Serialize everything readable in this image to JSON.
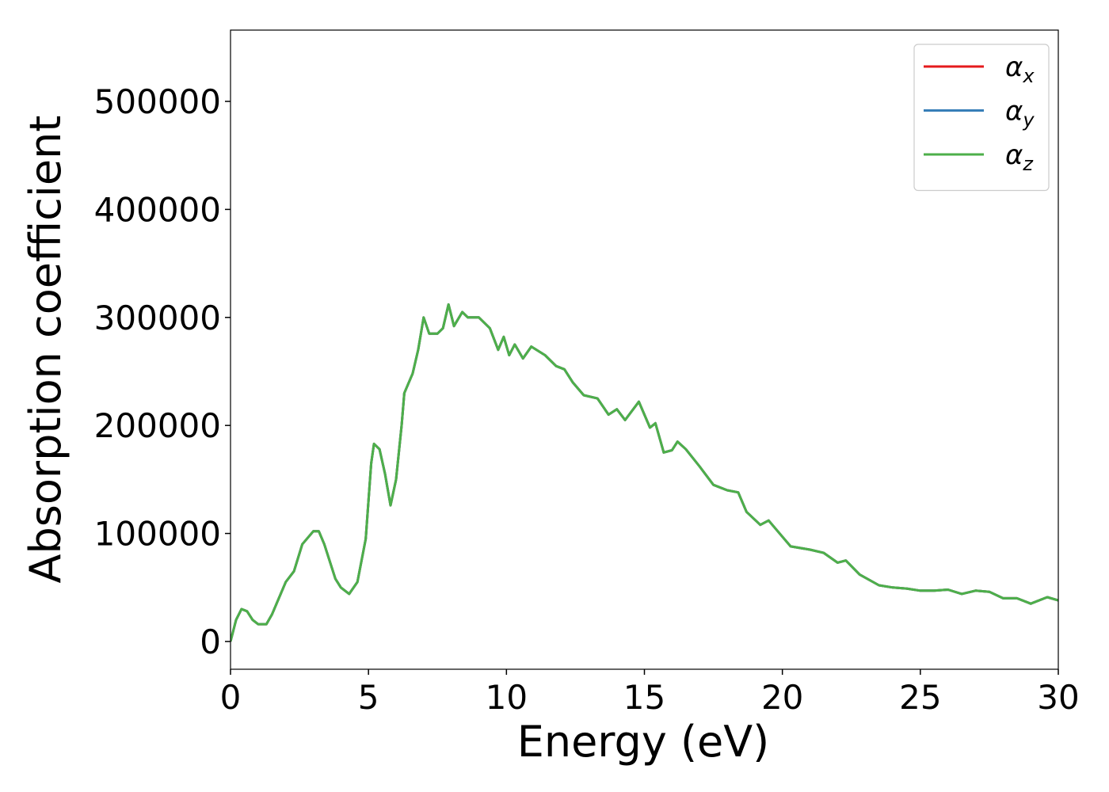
{
  "chart_data": {
    "type": "line",
    "xlabel": "Energy (eV)",
    "ylabel": "Absorption coefficient",
    "x": [
      0,
      0.2,
      0.4,
      0.6,
      0.8,
      1.0,
      1.3,
      1.5,
      2.0,
      2.3,
      2.6,
      3.0,
      3.2,
      3.4,
      3.8,
      4.0,
      4.3,
      4.6,
      4.9,
      5.1,
      5.2,
      5.4,
      5.6,
      5.8,
      6.0,
      6.2,
      6.3,
      6.6,
      6.8,
      7.0,
      7.2,
      7.5,
      7.7,
      7.9,
      8.1,
      8.4,
      8.6,
      9.0,
      9.4,
      9.7,
      9.9,
      10.1,
      10.3,
      10.6,
      10.9,
      11.4,
      11.8,
      12.1,
      12.4,
      12.8,
      13.3,
      13.7,
      14.0,
      14.3,
      14.8,
      15.2,
      15.4,
      15.7,
      16.0,
      16.2,
      16.5,
      17.0,
      17.5,
      18.0,
      18.4,
      18.7,
      19.2,
      19.5,
      20.0,
      20.3,
      21.0,
      21.5,
      22.0,
      22.3,
      22.8,
      23.5,
      24.0,
      24.5,
      25.0,
      25.5,
      26.0,
      26.5,
      27.0,
      27.5,
      28.0,
      28.5,
      29.0,
      29.6,
      30.0
    ],
    "series": [
      {
        "name": "αx",
        "color": "#e41a1c",
        "values": [
          0,
          20000,
          30000,
          28000,
          20000,
          16000,
          16000,
          25000,
          55000,
          65000,
          90000,
          102000,
          102000,
          90000,
          58000,
          50000,
          44000,
          55000,
          95000,
          165000,
          183000,
          178000,
          155000,
          126000,
          150000,
          200000,
          230000,
          248000,
          270000,
          300000,
          285000,
          285000,
          290000,
          312000,
          292000,
          305000,
          300000,
          300000,
          290000,
          270000,
          282000,
          265000,
          275000,
          262000,
          273000,
          265000,
          255000,
          252000,
          240000,
          228000,
          225000,
          210000,
          215000,
          205000,
          222000,
          198000,
          202000,
          175000,
          177000,
          185000,
          178000,
          162000,
          145000,
          140000,
          138000,
          120000,
          108000,
          112000,
          97000,
          88000,
          85000,
          82000,
          73000,
          75000,
          62000,
          52000,
          50000,
          49000,
          47000,
          47000,
          48000,
          44000,
          47000,
          46000,
          40000,
          40000,
          35000,
          41000,
          38000
        ]
      },
      {
        "name": "αy",
        "color": "#377eb8",
        "values": [
          0,
          20000,
          30000,
          28000,
          20000,
          16000,
          16000,
          25000,
          55000,
          65000,
          90000,
          102000,
          102000,
          90000,
          58000,
          50000,
          44000,
          55000,
          95000,
          165000,
          183000,
          178000,
          155000,
          126000,
          150000,
          200000,
          230000,
          248000,
          270000,
          300000,
          285000,
          285000,
          290000,
          312000,
          292000,
          305000,
          300000,
          300000,
          290000,
          270000,
          282000,
          265000,
          275000,
          262000,
          273000,
          265000,
          255000,
          252000,
          240000,
          228000,
          225000,
          210000,
          215000,
          205000,
          222000,
          198000,
          202000,
          175000,
          177000,
          185000,
          178000,
          162000,
          145000,
          140000,
          138000,
          120000,
          108000,
          112000,
          97000,
          88000,
          85000,
          82000,
          73000,
          75000,
          62000,
          52000,
          50000,
          49000,
          47000,
          47000,
          48000,
          44000,
          47000,
          46000,
          40000,
          40000,
          35000,
          41000,
          38000
        ]
      },
      {
        "name": "αz",
        "color": "#4daf4a",
        "values": [
          0,
          20000,
          30000,
          28000,
          20000,
          16000,
          16000,
          25000,
          55000,
          65000,
          90000,
          102000,
          102000,
          90000,
          58000,
          50000,
          44000,
          55000,
          95000,
          165000,
          183000,
          178000,
          155000,
          126000,
          150000,
          200000,
          230000,
          248000,
          270000,
          300000,
          285000,
          285000,
          290000,
          312000,
          292000,
          305000,
          300000,
          300000,
          290000,
          270000,
          282000,
          265000,
          275000,
          262000,
          273000,
          265000,
          255000,
          252000,
          240000,
          228000,
          225000,
          210000,
          215000,
          205000,
          222000,
          198000,
          202000,
          175000,
          177000,
          185000,
          178000,
          162000,
          145000,
          140000,
          138000,
          120000,
          108000,
          112000,
          97000,
          88000,
          85000,
          82000,
          73000,
          75000,
          62000,
          52000,
          50000,
          49000,
          47000,
          47000,
          48000,
          44000,
          47000,
          46000,
          40000,
          40000,
          35000,
          41000,
          38000
        ]
      }
    ],
    "xlim": [
      0,
      30
    ],
    "xticks": [
      0,
      5,
      10,
      15,
      20,
      25,
      30
    ],
    "ylim": [
      -25700,
      566000
    ],
    "yticks": [
      0,
      100000,
      200000,
      300000,
      400000,
      500000
    ],
    "grid": false,
    "legend": "upper right"
  }
}
